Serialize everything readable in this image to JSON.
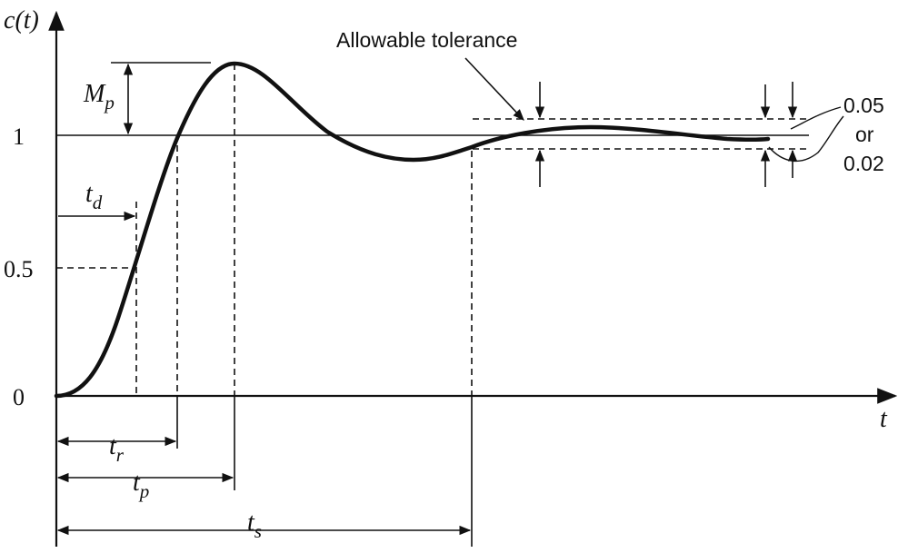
{
  "axes": {
    "y_label_main": "c",
    "y_label_arg": "(t)",
    "x_label": "t",
    "tick_1": "1",
    "tick_05": "0.5",
    "tick_0": "0"
  },
  "annotations": {
    "allowable_tolerance": "Allowable tolerance",
    "tol_005": "0.05",
    "tol_or": "or",
    "tol_002": "0.02",
    "mp_main": "M",
    "mp_sub": "p",
    "td_main": "t",
    "td_sub": "d",
    "tr_main": "t",
    "tr_sub": "r",
    "tp_main": "t",
    "tp_sub": "p",
    "ts_main": "t",
    "ts_sub": "s"
  }
}
